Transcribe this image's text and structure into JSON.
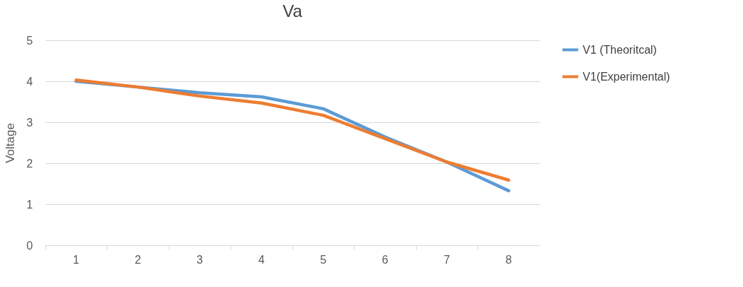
{
  "chart_data": {
    "type": "line",
    "title": "Va",
    "ylabel": "Voltage",
    "categories": [
      "1",
      "2",
      "3",
      "4",
      "5",
      "6",
      "7",
      "8"
    ],
    "series": [
      {
        "name": "V1 (Theoritcal)",
        "color": "#5b9bd5",
        "values": [
          4.0,
          3.86,
          3.72,
          3.62,
          3.33,
          2.64,
          2.03,
          1.33
        ]
      },
      {
        "name": "V1(Experimental)",
        "color": "#ed7d31",
        "values": [
          4.03,
          3.86,
          3.64,
          3.47,
          3.17,
          2.6,
          2.03,
          1.59
        ]
      }
    ],
    "ylim": [
      0,
      5
    ],
    "yticks": [
      0,
      1,
      2,
      3,
      4,
      5
    ],
    "grid": "y",
    "legend": "right"
  }
}
